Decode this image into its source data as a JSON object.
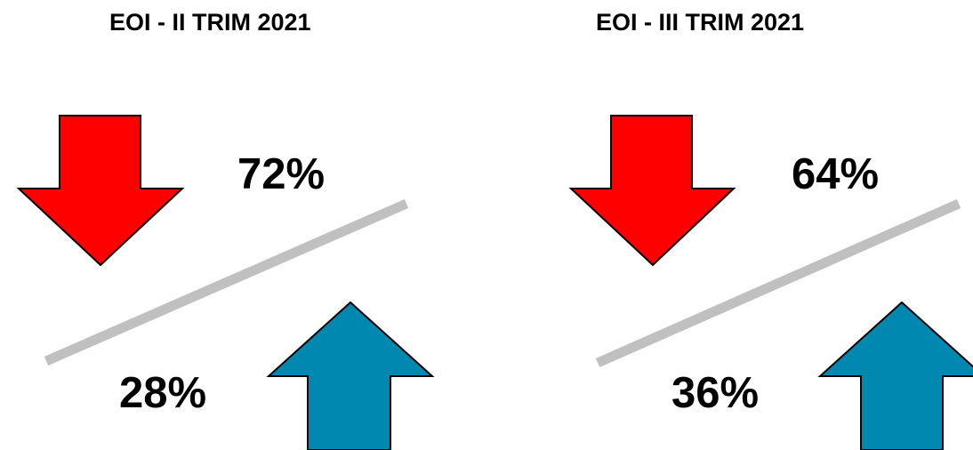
{
  "panels": [
    {
      "title": "EOI - II TRIM 2021",
      "top_value": "72%",
      "bottom_value": "28%",
      "top_arrow": "down-arrow-icon",
      "bottom_arrow": "up-arrow-icon"
    },
    {
      "title": "EOI - III TRIM 2021",
      "top_value": "64%",
      "bottom_value": "36%",
      "top_arrow": "down-arrow-icon",
      "bottom_arrow": "up-arrow-icon"
    }
  ],
  "colors": {
    "down_arrow": "#ff0000",
    "up_arrow": "#0088b0",
    "divider": "#c0c0c0",
    "text": "#000000"
  }
}
